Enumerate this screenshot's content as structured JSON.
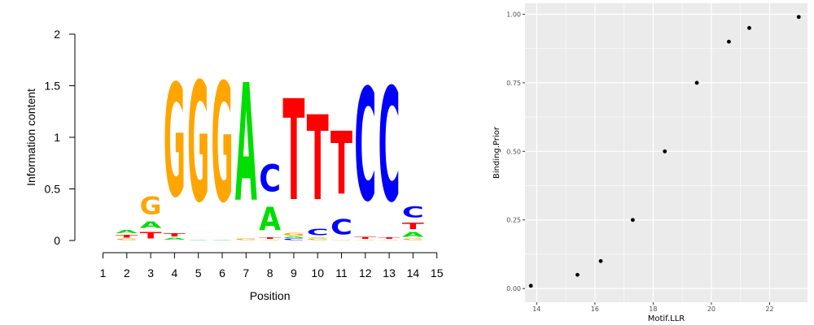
{
  "chart_data": [
    {
      "type": "sequence-logo",
      "ylabel": "Information content",
      "xlabel": "Position",
      "ylim": [
        0,
        2
      ],
      "y_ticks": [
        "0",
        "0.5",
        "1",
        "1.5",
        "2"
      ],
      "x_ticks": [
        "1",
        "2",
        "3",
        "4",
        "5",
        "6",
        "7",
        "8",
        "9",
        "10",
        "11",
        "12",
        "13",
        "14",
        "15"
      ],
      "colors": {
        "A": "#00dd00",
        "C": "#0000ff",
        "G": "#ffa500",
        "T": "#ff0000"
      },
      "positions": [
        {
          "position": 2,
          "letters": [
            {
              "letter": "G",
              "height": 0.02
            },
            {
              "letter": "T",
              "height": 0.04
            },
            {
              "letter": "A",
              "height": 0.05
            }
          ]
        },
        {
          "position": 3,
          "letters": [
            {
              "letter": "T",
              "height": 0.1
            },
            {
              "letter": "A",
              "height": 0.1
            },
            {
              "letter": "G",
              "height": 0.27
            }
          ]
        },
        {
          "position": 4,
          "letters": [
            {
              "letter": "A",
              "height": 0.03
            },
            {
              "letter": "T",
              "height": 0.05
            },
            {
              "letter": "G",
              "height": 1.75
            }
          ]
        },
        {
          "position": 5,
          "letters": [
            {
              "letter": "A",
              "height": 0.01
            },
            {
              "letter": "G",
              "height": 1.86
            }
          ]
        },
        {
          "position": 6,
          "letters": [
            {
              "letter": "A",
              "height": 0.01
            },
            {
              "letter": "G",
              "height": 1.85
            }
          ]
        },
        {
          "position": 7,
          "letters": [
            {
              "letter": "G",
              "height": 0.02
            },
            {
              "letter": "A",
              "height": 1.83
            }
          ]
        },
        {
          "position": 8,
          "letters": [
            {
              "letter": "G",
              "height": 0.01
            },
            {
              "letter": "T",
              "height": 0.02
            },
            {
              "letter": "A",
              "height": 0.36
            },
            {
              "letter": "C",
              "height": 0.42
            }
          ]
        },
        {
          "position": 9,
          "letters": [
            {
              "letter": "C",
              "height": 0.02
            },
            {
              "letter": "A",
              "height": 0.02
            },
            {
              "letter": "G",
              "height": 0.04
            },
            {
              "letter": "T",
              "height": 1.57
            }
          ]
        },
        {
          "position": 10,
          "letters": [
            {
              "letter": "G",
              "height": 0.02
            },
            {
              "letter": "A",
              "height": 0.01
            },
            {
              "letter": "C",
              "height": 0.1
            },
            {
              "letter": "T",
              "height": 1.32
            }
          ]
        },
        {
          "position": 11,
          "letters": [
            {
              "letter": "G",
              "height": 0.01
            },
            {
              "letter": "C",
              "height": 0.24
            },
            {
              "letter": "T",
              "height": 0.98
            }
          ]
        },
        {
          "position": 12,
          "letters": [
            {
              "letter": "G",
              "height": 0.01
            },
            {
              "letter": "T",
              "height": 0.03
            },
            {
              "letter": "C",
              "height": 1.75
            }
          ]
        },
        {
          "position": 13,
          "letters": [
            {
              "letter": "G",
              "height": 0.01
            },
            {
              "letter": "T",
              "height": 0.02
            },
            {
              "letter": "C",
              "height": 1.77
            }
          ]
        },
        {
          "position": 14,
          "letters": [
            {
              "letter": "G",
              "height": 0.02
            },
            {
              "letter": "A",
              "height": 0.07
            },
            {
              "letter": "T",
              "height": 0.1
            },
            {
              "letter": "C",
              "height": 0.17
            }
          ]
        }
      ]
    },
    {
      "type": "scatter",
      "xlabel": "Motif.LLR",
      "ylabel": "Binding.Prior",
      "xlim": [
        13.6,
        23.3
      ],
      "ylim": [
        -0.05,
        1.04
      ],
      "x_ticks": [
        14,
        16,
        18,
        20,
        22
      ],
      "y_ticks": [
        0.0,
        0.25,
        0.5,
        0.75,
        1.0
      ],
      "x_tick_labels": [
        "14",
        "16",
        "18",
        "20",
        "22"
      ],
      "y_tick_labels": [
        "0.00",
        "0.25",
        "0.50",
        "0.75",
        "1.00"
      ],
      "grid": true,
      "points": [
        {
          "x": 13.8,
          "y": 0.01
        },
        {
          "x": 15.4,
          "y": 0.05
        },
        {
          "x": 16.2,
          "y": 0.1
        },
        {
          "x": 17.3,
          "y": 0.25
        },
        {
          "x": 18.4,
          "y": 0.5
        },
        {
          "x": 19.5,
          "y": 0.75
        },
        {
          "x": 20.6,
          "y": 0.9
        },
        {
          "x": 21.3,
          "y": 0.95
        },
        {
          "x": 23.0,
          "y": 0.99
        }
      ],
      "colors": {
        "panel": "#ebebeb",
        "grid": "#ffffff",
        "point": "#000000"
      }
    }
  ]
}
